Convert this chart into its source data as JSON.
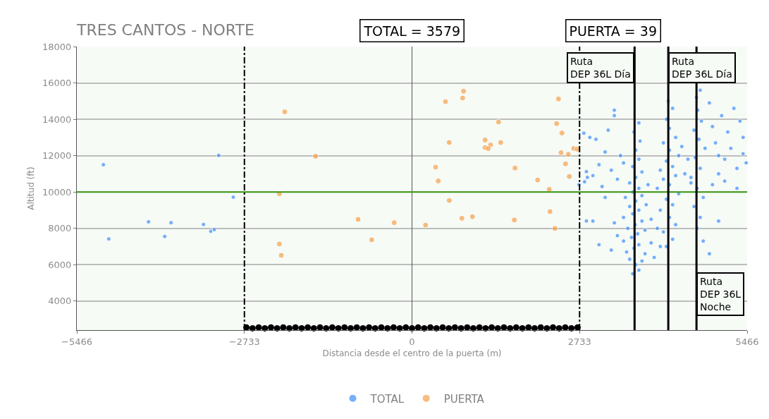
{
  "chart_data": {
    "type": "scatter",
    "title": "TRES CANTOS - NORTE",
    "xlabel": "Distancia desde el centro de la puerta (m)",
    "ylabel": "Altitud (ft)",
    "annotations": [
      "TOTAL = 3579",
      "PUERTA = 39"
    ],
    "xlim": [
      -5466,
      5466
    ],
    "xticks": [
      {
        "value": -5466,
        "label": "−5466"
      },
      {
        "value": -2733,
        "label": "−2733"
      },
      0,
      2733,
      5466
    ],
    "ylim": [
      2400,
      18000
    ],
    "yticks": [
      4000,
      6000,
      8000,
      10000,
      12000,
      14000,
      16000,
      18000
    ],
    "grid": "y",
    "legend": "bottom",
    "marker": "circle",
    "ref_lines": [
      {
        "axis": "y",
        "value": 10000,
        "color": "#3c9a14",
        "line_style": "solid"
      },
      {
        "axis": "x",
        "value": -2733,
        "color": "#000000",
        "line_style": "dashdot"
      },
      {
        "axis": "x",
        "value": 2733,
        "color": "#000000",
        "line_style": "dashdot"
      },
      {
        "axis": "x",
        "value": 3630,
        "color": "#000000",
        "line_style": "solid",
        "label": "Ruta\nDEP 36L Día"
      },
      {
        "axis": "x",
        "value": 4180,
        "color": "#000000",
        "line_style": "solid",
        "label": "Ruta\nDEP 36L Día"
      },
      {
        "axis": "x",
        "value": 4640,
        "color": "#000000",
        "line_style": "solid",
        "label": "Ruta\nDEP 36L\nNoche"
      }
    ],
    "series": [
      {
        "name": "TOTAL",
        "color": "#3d8ef8",
        "x": [
          -5033,
          -4945,
          -4297,
          -4033,
          -3929,
          -3400,
          -3282,
          -3224,
          -3152,
          -2914,
          2803,
          2845,
          2860,
          2814,
          2722,
          2845,
          3600,
          3700,
          3650,
          3550,
          3750,
          3500,
          3800,
          3620,
          3700,
          3450,
          3900,
          3580,
          3680,
          3800,
          3520,
          3640,
          3750,
          3450,
          3900,
          3600,
          3700,
          3550,
          3820,
          3650,
          3480,
          3750,
          3600,
          3700,
          3850,
          3550,
          3650,
          3750,
          3600,
          3700,
          3650,
          3720,
          3620,
          3700,
          3350,
          3300,
          3950,
          4050,
          4000,
          3250,
          2950,
          3050,
          3150,
          3000,
          3250,
          3350,
          3200,
          3400,
          3100,
          3450,
          2900,
          3300,
          3150,
          2950,
          3050,
          3300,
          4150,
          4250,
          4100,
          4300,
          4200,
          4050,
          4250,
          4150,
          4350,
          4000,
          4200,
          4100,
          4300,
          4050,
          4250,
          4150,
          4350,
          4200,
          4100,
          4300,
          4200,
          4150,
          4250,
          4180,
          4450,
          4500,
          4400,
          4550,
          4650,
          4700,
          4600,
          4750,
          4650,
          4550,
          4700,
          4620,
          4780,
          4680,
          4600,
          4720,
          4660,
          4640,
          4700,
          4750,
          4850,
          5000,
          4900,
          5000,
          5100,
          5200,
          5300,
          5400,
          4950,
          5150,
          5350,
          5050,
          5250,
          4900,
          5450,
          5100,
          5300,
          4850,
          5000,
          5400
        ],
        "values": [
          11500,
          7417,
          8360,
          7553,
          8310,
          8213,
          7835,
          7930,
          12014,
          9715,
          13234,
          11119,
          10804,
          10558,
          10400,
          8406,
          5500,
          5700,
          6000,
          6300,
          6200,
          6700,
          6600,
          6900,
          7100,
          7300,
          7200,
          7500,
          7700,
          7900,
          8000,
          8200,
          8400,
          8600,
          8500,
          8800,
          9000,
          9200,
          9300,
          9500,
          9700,
          9800,
          10000,
          10200,
          10400,
          10500,
          10800,
          11100,
          11400,
          11800,
          12300,
          12800,
          13300,
          13800,
          7600,
          8300,
          6400,
          7000,
          8000,
          6800,
          10900,
          11500,
          12200,
          12900,
          11200,
          10700,
          13400,
          12000,
          10300,
          11600,
          13000,
          14500,
          9700,
          8400,
          7100,
          14200,
          7000,
          7400,
          7800,
          8200,
          8600,
          9000,
          9300,
          9600,
          9900,
          10200,
          10400,
          10700,
          10900,
          11200,
          11400,
          11700,
          12000,
          12300,
          12700,
          13000,
          13500,
          14000,
          14600,
          15000,
          11000,
          11800,
          12500,
          10500,
          8000,
          8600,
          9200,
          9700,
          10200,
          10800,
          11300,
          11900,
          12400,
          12900,
          13400,
          13900,
          14500,
          15200,
          15600,
          7300,
          6600,
          8400,
          10400,
          11000,
          11800,
          12400,
          11300,
          12100,
          12700,
          13300,
          13900,
          14200,
          14600,
          13600,
          11600,
          10600,
          10200,
          14900,
          12000,
          13000
        ]
      },
      {
        "name": "PUERTA",
        "color": "#f5a04a",
        "x": [
          -2075,
          -1573,
          -2163,
          -2163,
          -2132,
          -879,
          -657,
          -290,
          841,
          826,
          546,
          2389,
          1412,
          2359,
          2446,
          607,
          1193,
          1282,
          1193,
          1244,
          1446,
          2638,
          2696,
          2431,
          2550,
          2504,
          385,
          1680,
          2566,
          428,
          2049,
          2239,
          607,
          2251,
          814,
          986,
          1669,
          221,
          2331
        ],
        "values": [
          14408,
          11963,
          9899,
          7139,
          6515,
          8495,
          7370,
          8311,
          15544,
          15166,
          14970,
          15115,
          13847,
          13759,
          13246,
          12721,
          12857,
          12586,
          12439,
          12392,
          12721,
          12392,
          12355,
          12160,
          12073,
          11549,
          11365,
          11317,
          10852,
          10607,
          10656,
          10143,
          9532,
          8920,
          8553,
          8641,
          8458,
          8176,
          7993
        ]
      },
      {
        "color": "#000000",
        "x": [
          -2700,
          -2600,
          -2500,
          -2400,
          -2300,
          -2200,
          -2100,
          -2000,
          -1900,
          -1800,
          -1700,
          -1600,
          -1500,
          -1400,
          -1300,
          -1200,
          -1100,
          -1000,
          -900,
          -800,
          -700,
          -600,
          -500,
          -400,
          -300,
          -200,
          -100,
          0,
          100,
          200,
          300,
          400,
          500,
          600,
          700,
          800,
          900,
          1000,
          1100,
          1200,
          1300,
          1400,
          1500,
          1600,
          1700,
          1800,
          1900,
          2000,
          2100,
          2200,
          2300,
          2400,
          2500,
          2600,
          2700
        ],
        "values": [
          2550,
          2500,
          2550,
          2500,
          2550,
          2500,
          2550,
          2500,
          2550,
          2500,
          2550,
          2500,
          2550,
          2500,
          2550,
          2500,
          2550,
          2500,
          2550,
          2500,
          2550,
          2500,
          2550,
          2500,
          2550,
          2500,
          2550,
          2500,
          2550,
          2500,
          2550,
          2500,
          2550,
          2500,
          2550,
          2500,
          2550,
          2500,
          2550,
          2500,
          2550,
          2500,
          2550,
          2500,
          2550,
          2500,
          2550,
          2500,
          2550,
          2500,
          2550,
          2500,
          2550,
          2500,
          2550
        ]
      }
    ]
  }
}
